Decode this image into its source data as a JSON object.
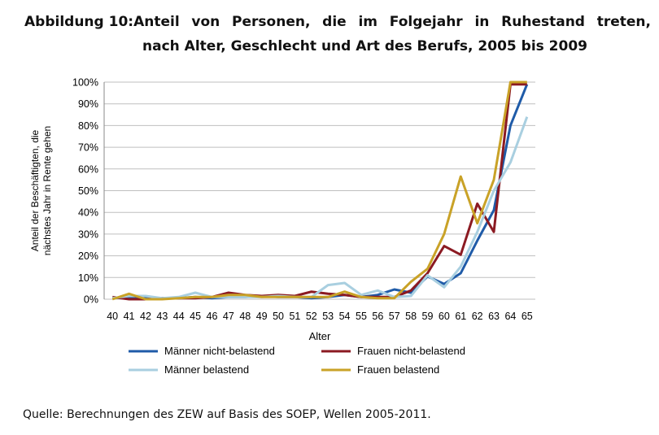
{
  "figure": {
    "label": "Abbildung 10:",
    "title_line1": "Anteil von Personen, die im Folgejahr in Ruhestand treten,",
    "title_line2": "nach Alter, Geschlecht und Art des Berufs, 2005 bis 2009",
    "source": "Quelle: Berechnungen des ZEW auf Basis des SOEP, Wellen 2005-2011."
  },
  "chart_data": {
    "type": "line",
    "title": "",
    "xlabel": "Alter",
    "ylabel_lines": [
      "Anteil der Beschäftigten, die",
      "nächstes Jahr in Rente gehen"
    ],
    "ylim": [
      0,
      100
    ],
    "ytick_labels": [
      "0%",
      "10%",
      "20%",
      "30%",
      "40%",
      "50%",
      "60%",
      "70%",
      "80%",
      "90%",
      "100%"
    ],
    "x": [
      40,
      41,
      42,
      43,
      44,
      45,
      46,
      47,
      48,
      49,
      50,
      51,
      52,
      53,
      54,
      55,
      56,
      57,
      58,
      59,
      60,
      61,
      62,
      63,
      64,
      65
    ],
    "grid": "horizontal",
    "legend_position": "bottom",
    "series": [
      {
        "name": "Männer nicht-belastend",
        "color": "#1f5ba8",
        "values": [
          0.5,
          1,
          0.5,
          0.5,
          0.5,
          1,
          0.5,
          1,
          1,
          1.5,
          1,
          1,
          0.5,
          1,
          2,
          1,
          2,
          4.5,
          3,
          10.5,
          7,
          12,
          27,
          41,
          80,
          99
        ]
      },
      {
        "name": "Frauen nicht-belastend",
        "color": "#8b1a22",
        "values": [
          1,
          0,
          0,
          0.5,
          0.5,
          0.5,
          1,
          3,
          2,
          1.5,
          2,
          1.5,
          3.5,
          2.5,
          2,
          1,
          1,
          1,
          4,
          12,
          24.5,
          20.5,
          44,
          31,
          99,
          99
        ]
      },
      {
        "name": "Männer belastend",
        "color": "#a9cfe0",
        "values": [
          0.5,
          1.5,
          1.5,
          0.5,
          1,
          3,
          1,
          1,
          1,
          1,
          1.5,
          1,
          1,
          6.5,
          7.5,
          2,
          4,
          1,
          1.5,
          11,
          5.5,
          15,
          31,
          50,
          63,
          84
        ]
      },
      {
        "name": "Frauen belastend",
        "color": "#c9a227",
        "values": [
          0,
          2.5,
          0,
          0,
          0.5,
          1,
          1,
          2,
          2,
          1,
          1,
          1,
          1,
          1,
          3.5,
          1,
          0.5,
          0.5,
          8,
          14,
          30,
          56.5,
          35,
          55,
          100,
          100
        ]
      }
    ]
  }
}
